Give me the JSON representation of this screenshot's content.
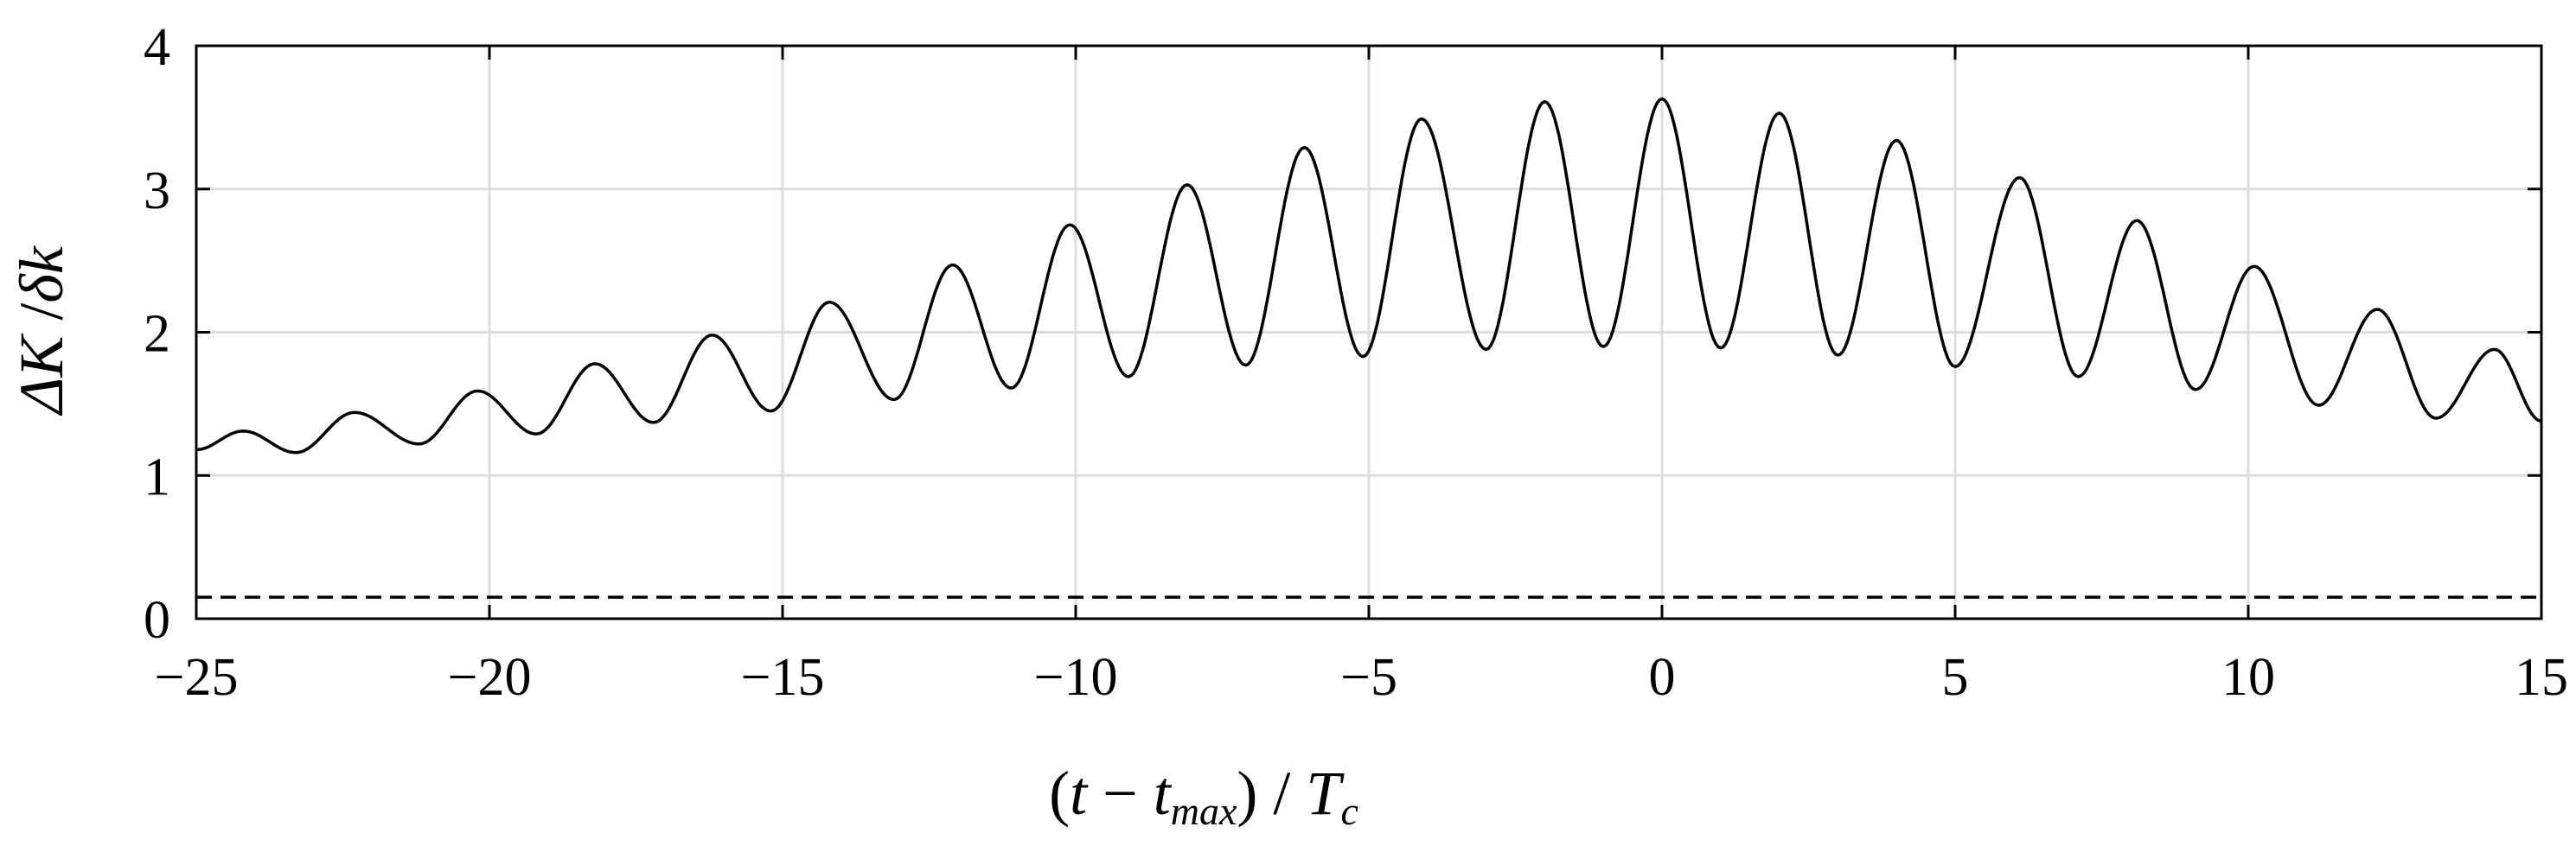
{
  "chart_data": {
    "type": "line",
    "xlabel": {
      "open": "(",
      "t": "t",
      "minus": " − ",
      "tmax": "t",
      "tmax_sub": "max",
      "close": ")",
      "slash": " / ",
      "Tc": "T",
      "Tc_sub": "c"
    },
    "ylabel": {
      "delta_cap": "Δ",
      "K": "K",
      "slash": " /",
      "delta_small": "δ",
      "k": "k"
    },
    "xlim": [
      -25,
      15
    ],
    "ylim": [
      0,
      4
    ],
    "xticks": [
      -25,
      -20,
      -15,
      -10,
      -5,
      0,
      5,
      10,
      15
    ],
    "xtick_labels": [
      "−25",
      "−20",
      "−15",
      "−10",
      "−5",
      "0",
      "5",
      "10",
      "15"
    ],
    "yticks": [
      0,
      1,
      2,
      3,
      4
    ],
    "ytick_labels": [
      "0",
      "1",
      "2",
      "3",
      "4"
    ],
    "grid": true,
    "series": [
      {
        "style": "solid",
        "color": "#000000",
        "period": 2.03,
        "x_start": -25,
        "x_end": 15,
        "extrema": [
          [
            -25.0,
            1.18
          ],
          [
            -24.2,
            1.31
          ],
          [
            -23.3,
            1.16
          ],
          [
            -22.3,
            1.44
          ],
          [
            -21.2,
            1.22
          ],
          [
            -20.2,
            1.59
          ],
          [
            -19.2,
            1.29
          ],
          [
            -18.2,
            1.78
          ],
          [
            -17.2,
            1.37
          ],
          [
            -16.2,
            1.98
          ],
          [
            -15.2,
            1.45
          ],
          [
            -14.2,
            2.21
          ],
          [
            -13.1,
            1.53
          ],
          [
            -12.1,
            2.47
          ],
          [
            -11.1,
            1.61
          ],
          [
            -10.1,
            2.75
          ],
          [
            -9.1,
            1.69
          ],
          [
            -8.1,
            3.03
          ],
          [
            -7.1,
            1.77
          ],
          [
            -6.1,
            3.29
          ],
          [
            -5.1,
            1.83
          ],
          [
            -4.1,
            3.49
          ],
          [
            -3.0,
            1.88
          ],
          [
            -2.0,
            3.61
          ],
          [
            -1.0,
            1.9
          ],
          [
            0.0,
            3.63
          ],
          [
            1.0,
            1.89
          ],
          [
            2.0,
            3.53
          ],
          [
            3.0,
            1.84
          ],
          [
            4.0,
            3.34
          ],
          [
            5.0,
            1.76
          ],
          [
            6.1,
            3.08
          ],
          [
            7.1,
            1.69
          ],
          [
            8.1,
            2.78
          ],
          [
            9.1,
            1.6
          ],
          [
            10.1,
            2.46
          ],
          [
            11.2,
            1.49
          ],
          [
            12.2,
            2.16
          ],
          [
            13.2,
            1.4
          ],
          [
            14.2,
            1.88
          ],
          [
            15.0,
            1.38
          ]
        ]
      },
      {
        "style": "dashed",
        "color": "#000000",
        "x": [
          -25,
          15
        ],
        "y": [
          0.15,
          0.15
        ]
      }
    ]
  }
}
